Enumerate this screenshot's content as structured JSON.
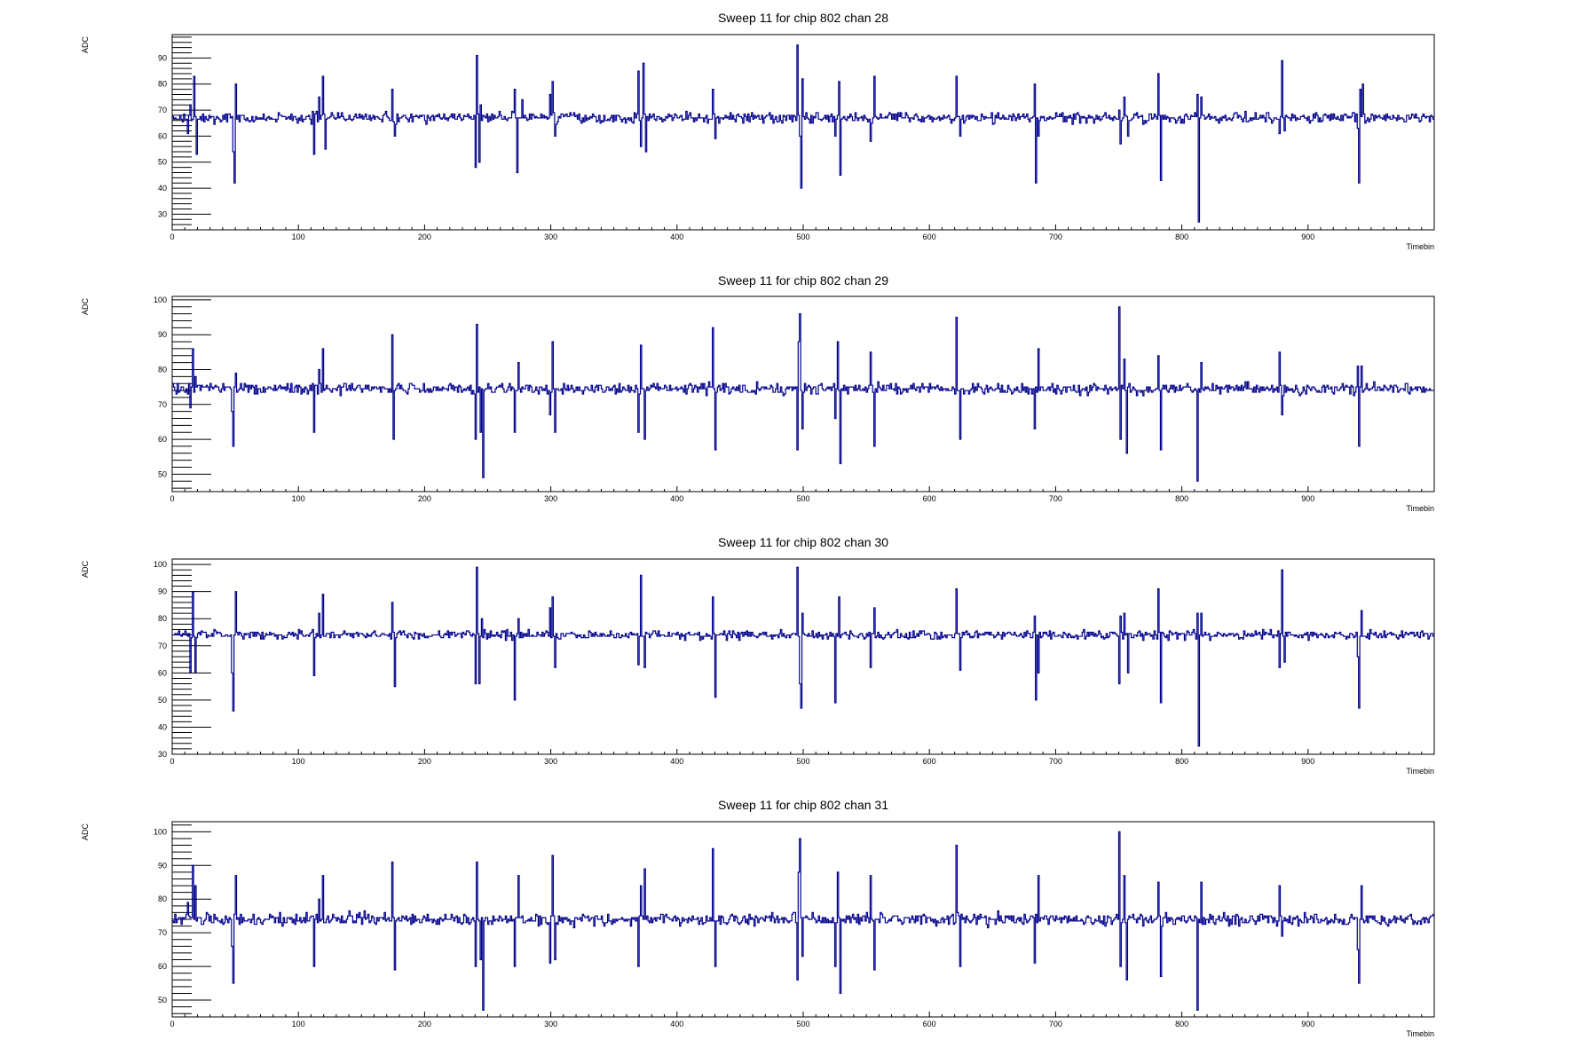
{
  "page": {
    "background": "#ffffff"
  },
  "style": {
    "line_color": "#00008b",
    "axis_color": "#000000"
  },
  "chart_data": [
    {
      "type": "line",
      "title": "Sweep 11 for chip 802 chan 28",
      "xlabel": "Timebin",
      "ylabel": "ADC",
      "xlim": [
        0,
        1000
      ],
      "ylim": [
        24,
        99
      ],
      "xticks": [
        0,
        100,
        200,
        300,
        400,
        500,
        600,
        700,
        800,
        900
      ],
      "yticks": [
        30,
        40,
        50,
        60,
        70,
        80,
        90
      ],
      "baseline": 67,
      "noise": 1.2,
      "seed": 28,
      "series": [
        {
          "spikes": [
            [
              12,
              61
            ],
            [
              14,
              72
            ],
            [
              17,
              83
            ],
            [
              19,
              53
            ],
            [
              48,
              54
            ],
            [
              49,
              42
            ],
            [
              50,
              80
            ],
            [
              112,
              53
            ],
            [
              116,
              75
            ],
            [
              119,
              83
            ],
            [
              121,
              55
            ],
            [
              174,
              78
            ],
            [
              176,
              60
            ],
            [
              240,
              48
            ],
            [
              241,
              91
            ],
            [
              243,
              50
            ],
            [
              244,
              72
            ],
            [
              271,
              78
            ],
            [
              273,
              46
            ],
            [
              277,
              74
            ],
            [
              299,
              76
            ],
            [
              301,
              81
            ],
            [
              303,
              60
            ],
            [
              369,
              85
            ],
            [
              371,
              56
            ],
            [
              373,
              88
            ],
            [
              375,
              54
            ],
            [
              377,
              66
            ],
            [
              428,
              78
            ],
            [
              430,
              59
            ],
            [
              495,
              95
            ],
            [
              497,
              60
            ],
            [
              498,
              40
            ],
            [
              499,
              82
            ],
            [
              525,
              60
            ],
            [
              528,
              81
            ],
            [
              529,
              45
            ],
            [
              553,
              58
            ],
            [
              556,
              83
            ],
            [
              621,
              83
            ],
            [
              624,
              60
            ],
            [
              683,
              80
            ],
            [
              684,
              42
            ],
            [
              686,
              60
            ],
            [
              750,
              70
            ],
            [
              751,
              57
            ],
            [
              754,
              75
            ],
            [
              757,
              60
            ],
            [
              781,
              84
            ],
            [
              783,
              43
            ],
            [
              812,
              76
            ],
            [
              813,
              27
            ],
            [
              815,
              75
            ],
            [
              877,
              61
            ],
            [
              879,
              89
            ],
            [
              881,
              62
            ],
            [
              939,
              63
            ],
            [
              940,
              42
            ],
            [
              941,
              78
            ],
            [
              943,
              80
            ]
          ]
        }
      ]
    },
    {
      "type": "line",
      "title": "Sweep 11 for chip 802 chan 29",
      "xlabel": "Timebin",
      "ylabel": "ADC",
      "xlim": [
        0,
        1000
      ],
      "ylim": [
        45,
        101
      ],
      "xticks": [
        0,
        100,
        200,
        300,
        400,
        500,
        600,
        700,
        800,
        900
      ],
      "yticks": [
        50,
        60,
        70,
        80,
        90,
        100
      ],
      "baseline": 74.5,
      "noise": 1.0,
      "seed": 29,
      "series": [
        {
          "spikes": [
            [
              14,
              69
            ],
            [
              16,
              86
            ],
            [
              18,
              78
            ],
            [
              47,
              68
            ],
            [
              48,
              58
            ],
            [
              50,
              79
            ],
            [
              112,
              62
            ],
            [
              116,
              80
            ],
            [
              119,
              86
            ],
            [
              174,
              90
            ],
            [
              175,
              60
            ],
            [
              240,
              60
            ],
            [
              241,
              93
            ],
            [
              244,
              62
            ],
            [
              246,
              49
            ],
            [
              271,
              62
            ],
            [
              274,
              82
            ],
            [
              299,
              67
            ],
            [
              301,
              88
            ],
            [
              303,
              62
            ],
            [
              369,
              62
            ],
            [
              371,
              87
            ],
            [
              374,
              60
            ],
            [
              428,
              92
            ],
            [
              430,
              57
            ],
            [
              495,
              57
            ],
            [
              496,
              88
            ],
            [
              497,
              96
            ],
            [
              499,
              63
            ],
            [
              525,
              66
            ],
            [
              527,
              88
            ],
            [
              529,
              53
            ],
            [
              553,
              85
            ],
            [
              556,
              58
            ],
            [
              621,
              95
            ],
            [
              624,
              60
            ],
            [
              683,
              63
            ],
            [
              686,
              86
            ],
            [
              750,
              98
            ],
            [
              751,
              60
            ],
            [
              754,
              83
            ],
            [
              756,
              56
            ],
            [
              781,
              84
            ],
            [
              783,
              57
            ],
            [
              812,
              48
            ],
            [
              815,
              82
            ],
            [
              877,
              85
            ],
            [
              879,
              67
            ],
            [
              939,
              81
            ],
            [
              940,
              58
            ],
            [
              942,
              81
            ]
          ]
        }
      ]
    },
    {
      "type": "line",
      "title": "Sweep 11 for chip 802 chan 30",
      "xlabel": "Timebin",
      "ylabel": "ADC",
      "xlim": [
        0,
        1000
      ],
      "ylim": [
        30,
        102
      ],
      "xticks": [
        0,
        100,
        200,
        300,
        400,
        500,
        600,
        700,
        800,
        900
      ],
      "yticks": [
        30,
        40,
        50,
        60,
        70,
        80,
        90,
        100
      ],
      "baseline": 74,
      "noise": 1.0,
      "seed": 30,
      "series": [
        {
          "spikes": [
            [
              14,
              60
            ],
            [
              16,
              90
            ],
            [
              18,
              60
            ],
            [
              47,
              60
            ],
            [
              48,
              46
            ],
            [
              50,
              90
            ],
            [
              112,
              59
            ],
            [
              116,
              82
            ],
            [
              119,
              89
            ],
            [
              174,
              86
            ],
            [
              176,
              55
            ],
            [
              240,
              56
            ],
            [
              241,
              99
            ],
            [
              243,
              56
            ],
            [
              245,
              80
            ],
            [
              271,
              50
            ],
            [
              274,
              80
            ],
            [
              299,
              84
            ],
            [
              301,
              88
            ],
            [
              303,
              62
            ],
            [
              369,
              63
            ],
            [
              371,
              96
            ],
            [
              374,
              62
            ],
            [
              428,
              88
            ],
            [
              430,
              51
            ],
            [
              495,
              99
            ],
            [
              497,
              56
            ],
            [
              498,
              47
            ],
            [
              499,
              82
            ],
            [
              525,
              49
            ],
            [
              528,
              88
            ],
            [
              553,
              62
            ],
            [
              556,
              84
            ],
            [
              621,
              91
            ],
            [
              624,
              61
            ],
            [
              683,
              81
            ],
            [
              684,
              50
            ],
            [
              686,
              60
            ],
            [
              750,
              56
            ],
            [
              751,
              81
            ],
            [
              754,
              82
            ],
            [
              757,
              60
            ],
            [
              781,
              91
            ],
            [
              783,
              49
            ],
            [
              812,
              82
            ],
            [
              813,
              33
            ],
            [
              815,
              82
            ],
            [
              877,
              62
            ],
            [
              879,
              98
            ],
            [
              881,
              64
            ],
            [
              939,
              66
            ],
            [
              940,
              47
            ],
            [
              942,
              83
            ]
          ]
        }
      ]
    },
    {
      "type": "line",
      "title": "Sweep 11 for chip 802 chan 31",
      "xlabel": "Timebin",
      "ylabel": "ADC",
      "xlim": [
        0,
        1000
      ],
      "ylim": [
        45,
        103
      ],
      "xticks": [
        0,
        100,
        200,
        300,
        400,
        500,
        600,
        700,
        800,
        900
      ],
      "yticks": [
        50,
        60,
        70,
        80,
        90,
        100
      ],
      "baseline": 74,
      "noise": 1.1,
      "seed": 31,
      "series": [
        {
          "spikes": [
            [
              12,
              79
            ],
            [
              16,
              90
            ],
            [
              18,
              84
            ],
            [
              47,
              66
            ],
            [
              48,
              55
            ],
            [
              50,
              87
            ],
            [
              112,
              60
            ],
            [
              116,
              80
            ],
            [
              119,
              87
            ],
            [
              174,
              91
            ],
            [
              176,
              59
            ],
            [
              240,
              60
            ],
            [
              241,
              91
            ],
            [
              244,
              62
            ],
            [
              246,
              47
            ],
            [
              271,
              60
            ],
            [
              274,
              87
            ],
            [
              299,
              61
            ],
            [
              301,
              93
            ],
            [
              303,
              62
            ],
            [
              369,
              60
            ],
            [
              371,
              84
            ],
            [
              374,
              89
            ],
            [
              428,
              95
            ],
            [
              430,
              60
            ],
            [
              495,
              56
            ],
            [
              496,
              88
            ],
            [
              497,
              98
            ],
            [
              499,
              63
            ],
            [
              525,
              60
            ],
            [
              527,
              88
            ],
            [
              529,
              52
            ],
            [
              553,
              87
            ],
            [
              556,
              59
            ],
            [
              621,
              96
            ],
            [
              624,
              60
            ],
            [
              683,
              61
            ],
            [
              686,
              87
            ],
            [
              750,
              100
            ],
            [
              751,
              60
            ],
            [
              754,
              87
            ],
            [
              756,
              56
            ],
            [
              781,
              85
            ],
            [
              783,
              57
            ],
            [
              812,
              47
            ],
            [
              815,
              85
            ],
            [
              877,
              84
            ],
            [
              879,
              69
            ],
            [
              939,
              65
            ],
            [
              940,
              55
            ],
            [
              942,
              84
            ]
          ]
        }
      ]
    }
  ]
}
